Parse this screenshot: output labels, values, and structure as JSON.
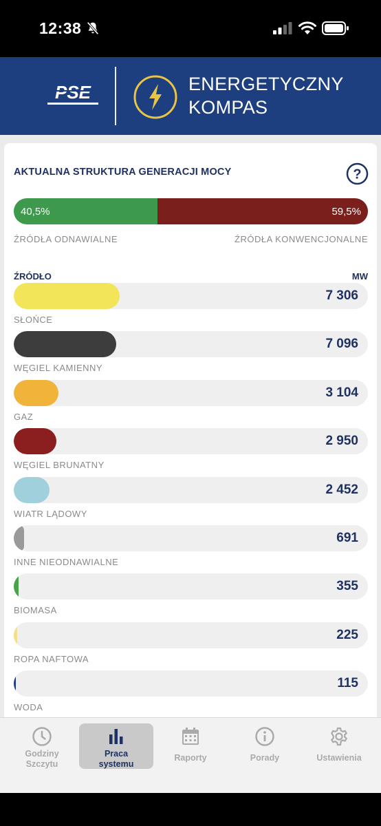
{
  "status_bar": {
    "time": "12:38"
  },
  "header": {
    "logo_text": "PSE",
    "brand_line1": "ENERGETYCZNY",
    "brand_line2": "KOMPAS"
  },
  "card": {
    "title": "AKTUALNA STRUKTURA GENERACJI MOCY",
    "renewable": {
      "percent_label": "40,5%",
      "share": 0.405,
      "label": "ŹRÓDŁA ODNAWIALNE",
      "color": "#3d9a4c"
    },
    "conventional": {
      "percent_label": "59,5%",
      "share": 0.595,
      "label": "ŹRÓDŁA KONWENCJONALNE",
      "color": "#7a1f1b"
    },
    "column_source": "ŹRÓDŁO",
    "column_unit": "MW",
    "sources": [
      {
        "name": "SŁOŃCE",
        "value_label": "7 306",
        "value": 7306,
        "color": "#f2e55a"
      },
      {
        "name": "WĘGIEL KAMIENNY",
        "value_label": "7 096",
        "value": 7096,
        "color": "#3d3d3d"
      },
      {
        "name": "GAZ",
        "value_label": "3 104",
        "value": 3104,
        "color": "#f0b43a"
      },
      {
        "name": "WĘGIEL BRUNATNY",
        "value_label": "2 950",
        "value": 2950,
        "color": "#8b1f1f"
      },
      {
        "name": "WIATR LĄDOWY",
        "value_label": "2 452",
        "value": 2452,
        "color": "#9fd0db"
      },
      {
        "name": "INNE NIEODNAWIALNE",
        "value_label": "691",
        "value": 691,
        "color": "#9a9a9a"
      },
      {
        "name": "BIOMASA",
        "value_label": "355",
        "value": 355,
        "color": "#4aa34a"
      },
      {
        "name": "ROPA NAFTOWA",
        "value_label": "225",
        "value": 225,
        "color": "#f4e08a"
      },
      {
        "name": "WODA",
        "value_label": "115",
        "value": 115,
        "color": "#1f3a8a"
      }
    ],
    "scale_max": 24500
  },
  "tabs": [
    {
      "line1": "Godziny",
      "line2": "Szczytu",
      "icon": "clock-icon",
      "active": false
    },
    {
      "line1": "Praca",
      "line2": "systemu",
      "icon": "bar-chart-icon",
      "active": true
    },
    {
      "line1": "Raporty",
      "line2": "",
      "icon": "calendar-icon",
      "active": false
    },
    {
      "line1": "Porady",
      "line2": "",
      "icon": "info-icon",
      "active": false
    },
    {
      "line1": "Ustawienia",
      "line2": "",
      "icon": "gear-icon",
      "active": false
    }
  ]
}
